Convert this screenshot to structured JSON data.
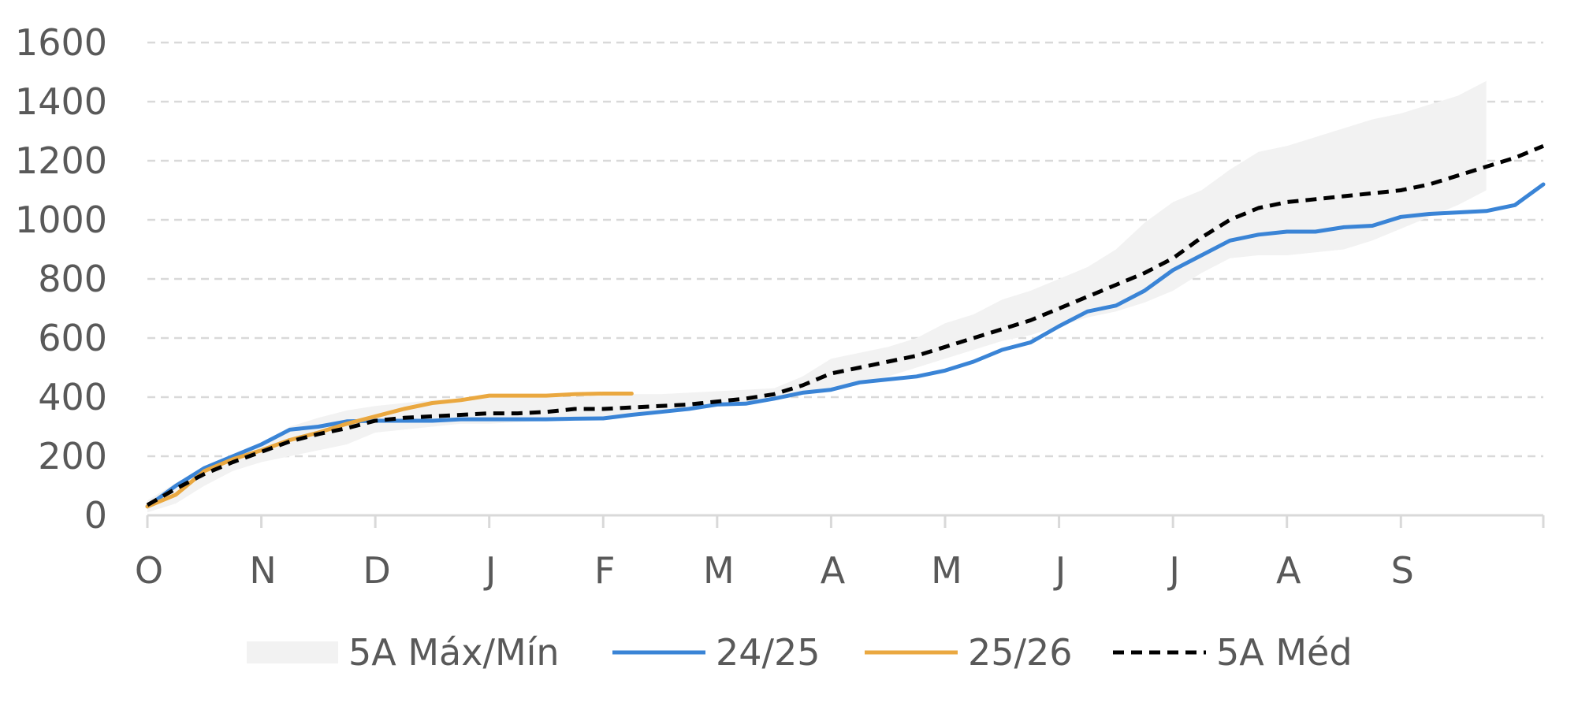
{
  "chart_data": {
    "type": "line",
    "title": "",
    "xlabel": "",
    "ylabel": "",
    "ylim": [
      0,
      1600
    ],
    "y_ticks": [
      0,
      200,
      400,
      600,
      800,
      1000,
      1200,
      1400,
      1600
    ],
    "month_labels": [
      "O",
      "N",
      "D",
      "J",
      "F",
      "M",
      "A",
      "M",
      "J",
      "J",
      "A",
      "S"
    ],
    "grid": "horizontal dashed",
    "legend_position": "bottom",
    "band": {
      "name": "5A Máx/Mín",
      "color": "#f2f2f2",
      "upper": [
        [
          0,
          50
        ],
        [
          0.25,
          110
        ],
        [
          0.5,
          160
        ],
        [
          0.75,
          195
        ],
        [
          1.0,
          240
        ],
        [
          1.25,
          300
        ],
        [
          1.5,
          330
        ],
        [
          1.75,
          355
        ],
        [
          2.0,
          370
        ],
        [
          2.25,
          380
        ],
        [
          2.5,
          390
        ],
        [
          2.75,
          395
        ],
        [
          3.0,
          400
        ],
        [
          3.25,
          400
        ],
        [
          3.5,
          400
        ],
        [
          3.75,
          400
        ],
        [
          4.0,
          405
        ],
        [
          4.25,
          410
        ],
        [
          4.5,
          410
        ],
        [
          4.75,
          415
        ],
        [
          5.0,
          420
        ],
        [
          5.25,
          425
        ],
        [
          5.5,
          430
        ],
        [
          5.75,
          470
        ],
        [
          6.0,
          530
        ],
        [
          6.25,
          550
        ],
        [
          6.5,
          570
        ],
        [
          6.75,
          600
        ],
        [
          7.0,
          650
        ],
        [
          7.25,
          680
        ],
        [
          7.5,
          730
        ],
        [
          7.75,
          760
        ],
        [
          8.0,
          800
        ],
        [
          8.25,
          840
        ],
        [
          8.5,
          900
        ],
        [
          8.75,
          990
        ],
        [
          9.0,
          1060
        ],
        [
          9.25,
          1100
        ],
        [
          9.5,
          1170
        ],
        [
          9.75,
          1230
        ],
        [
          10.0,
          1250
        ],
        [
          10.25,
          1280
        ],
        [
          10.5,
          1310
        ],
        [
          10.75,
          1340
        ],
        [
          11.0,
          1360
        ],
        [
          11.25,
          1390
        ],
        [
          11.5,
          1420
        ],
        [
          11.75,
          1470
        ]
      ],
      "lower": [
        [
          0,
          10
        ],
        [
          0.25,
          40
        ],
        [
          0.5,
          100
        ],
        [
          0.75,
          150
        ],
        [
          1.0,
          180
        ],
        [
          1.25,
          200
        ],
        [
          1.5,
          220
        ],
        [
          1.75,
          240
        ],
        [
          2.0,
          280
        ],
        [
          2.25,
          290
        ],
        [
          2.5,
          300
        ],
        [
          2.75,
          310
        ],
        [
          3.0,
          310
        ],
        [
          3.25,
          315
        ],
        [
          3.5,
          320
        ],
        [
          3.75,
          325
        ],
        [
          4.0,
          330
        ],
        [
          4.25,
          340
        ],
        [
          4.5,
          350
        ],
        [
          4.75,
          360
        ],
        [
          5.0,
          370
        ],
        [
          5.25,
          380
        ],
        [
          5.5,
          390
        ],
        [
          5.75,
          410
        ],
        [
          6.0,
          430
        ],
        [
          6.25,
          450
        ],
        [
          6.5,
          470
        ],
        [
          6.75,
          500
        ],
        [
          7.0,
          530
        ],
        [
          7.25,
          560
        ],
        [
          7.5,
          590
        ],
        [
          7.75,
          610
        ],
        [
          8.0,
          640
        ],
        [
          8.25,
          670
        ],
        [
          8.5,
          690
        ],
        [
          8.75,
          720
        ],
        [
          9.0,
          760
        ],
        [
          9.25,
          820
        ],
        [
          9.5,
          870
        ],
        [
          9.75,
          880
        ],
        [
          10.0,
          880
        ],
        [
          10.25,
          890
        ],
        [
          10.5,
          900
        ],
        [
          10.75,
          930
        ],
        [
          11.0,
          970
        ],
        [
          11.25,
          1010
        ],
        [
          11.5,
          1050
        ],
        [
          11.75,
          1100
        ]
      ]
    },
    "series": [
      {
        "name": "24/25",
        "color": "#3a84d6",
        "dash": false,
        "points": [
          [
            0,
            30
          ],
          [
            0.25,
            100
          ],
          [
            0.5,
            160
          ],
          [
            0.75,
            200
          ],
          [
            1.0,
            240
          ],
          [
            1.25,
            290
          ],
          [
            1.5,
            300
          ],
          [
            1.75,
            318
          ],
          [
            2.0,
            320
          ],
          [
            2.25,
            320
          ],
          [
            2.5,
            320
          ],
          [
            2.75,
            325
          ],
          [
            3.0,
            325
          ],
          [
            3.25,
            325
          ],
          [
            3.5,
            325
          ],
          [
            3.75,
            327
          ],
          [
            4.0,
            328
          ],
          [
            4.25,
            340
          ],
          [
            4.5,
            350
          ],
          [
            4.75,
            360
          ],
          [
            5.0,
            375
          ],
          [
            5.25,
            378
          ],
          [
            5.5,
            395
          ],
          [
            5.75,
            415
          ],
          [
            6.0,
            425
          ],
          [
            6.25,
            450
          ],
          [
            6.5,
            460
          ],
          [
            6.75,
            470
          ],
          [
            7.0,
            490
          ],
          [
            7.25,
            520
          ],
          [
            7.5,
            560
          ],
          [
            7.75,
            585
          ],
          [
            8.0,
            640
          ],
          [
            8.25,
            690
          ],
          [
            8.5,
            710
          ],
          [
            8.75,
            760
          ],
          [
            9.0,
            830
          ],
          [
            9.25,
            880
          ],
          [
            9.5,
            930
          ],
          [
            9.75,
            950
          ],
          [
            10.0,
            960
          ],
          [
            10.25,
            960
          ],
          [
            10.5,
            975
          ],
          [
            10.75,
            980
          ],
          [
            11.0,
            1010
          ],
          [
            11.25,
            1020
          ],
          [
            11.5,
            1025
          ],
          [
            11.75,
            1030
          ],
          [
            12.0,
            1050
          ],
          [
            12.25,
            1120
          ]
        ]
      },
      {
        "name": "25/26",
        "color": "#eaa840",
        "dash": false,
        "points": [
          [
            0,
            30
          ],
          [
            0.25,
            70
          ],
          [
            0.5,
            150
          ],
          [
            0.75,
            190
          ],
          [
            1.0,
            220
          ],
          [
            1.25,
            255
          ],
          [
            1.5,
            280
          ],
          [
            1.75,
            310
          ],
          [
            2.0,
            335
          ],
          [
            2.25,
            360
          ],
          [
            2.5,
            380
          ],
          [
            2.75,
            390
          ],
          [
            3.0,
            405
          ],
          [
            3.25,
            405
          ],
          [
            3.5,
            405
          ],
          [
            3.75,
            410
          ],
          [
            4.0,
            412
          ],
          [
            4.25,
            412
          ]
        ]
      },
      {
        "name": "5A Méd",
        "color": "#000000",
        "dash": true,
        "points": [
          [
            0,
            35
          ],
          [
            0.25,
            90
          ],
          [
            0.5,
            140
          ],
          [
            0.75,
            180
          ],
          [
            1.0,
            215
          ],
          [
            1.25,
            250
          ],
          [
            1.5,
            275
          ],
          [
            1.75,
            295
          ],
          [
            2.0,
            320
          ],
          [
            2.25,
            330
          ],
          [
            2.5,
            335
          ],
          [
            2.75,
            340
          ],
          [
            3.0,
            345
          ],
          [
            3.25,
            345
          ],
          [
            3.5,
            350
          ],
          [
            3.75,
            360
          ],
          [
            4.0,
            360
          ],
          [
            4.25,
            365
          ],
          [
            4.5,
            370
          ],
          [
            4.75,
            375
          ],
          [
            5.0,
            385
          ],
          [
            5.25,
            395
          ],
          [
            5.5,
            410
          ],
          [
            5.75,
            440
          ],
          [
            6.0,
            480
          ],
          [
            6.25,
            500
          ],
          [
            6.5,
            520
          ],
          [
            6.75,
            540
          ],
          [
            7.0,
            570
          ],
          [
            7.25,
            600
          ],
          [
            7.5,
            630
          ],
          [
            7.75,
            660
          ],
          [
            8.0,
            700
          ],
          [
            8.25,
            740
          ],
          [
            8.5,
            780
          ],
          [
            8.75,
            820
          ],
          [
            9.0,
            870
          ],
          [
            9.25,
            940
          ],
          [
            9.5,
            1000
          ],
          [
            9.75,
            1040
          ],
          [
            10.0,
            1060
          ],
          [
            10.25,
            1070
          ],
          [
            10.5,
            1080
          ],
          [
            10.75,
            1090
          ],
          [
            11.0,
            1100
          ],
          [
            11.25,
            1120
          ],
          [
            11.5,
            1150
          ],
          [
            11.75,
            1180
          ],
          [
            12.0,
            1210
          ],
          [
            12.25,
            1250
          ]
        ]
      }
    ]
  }
}
